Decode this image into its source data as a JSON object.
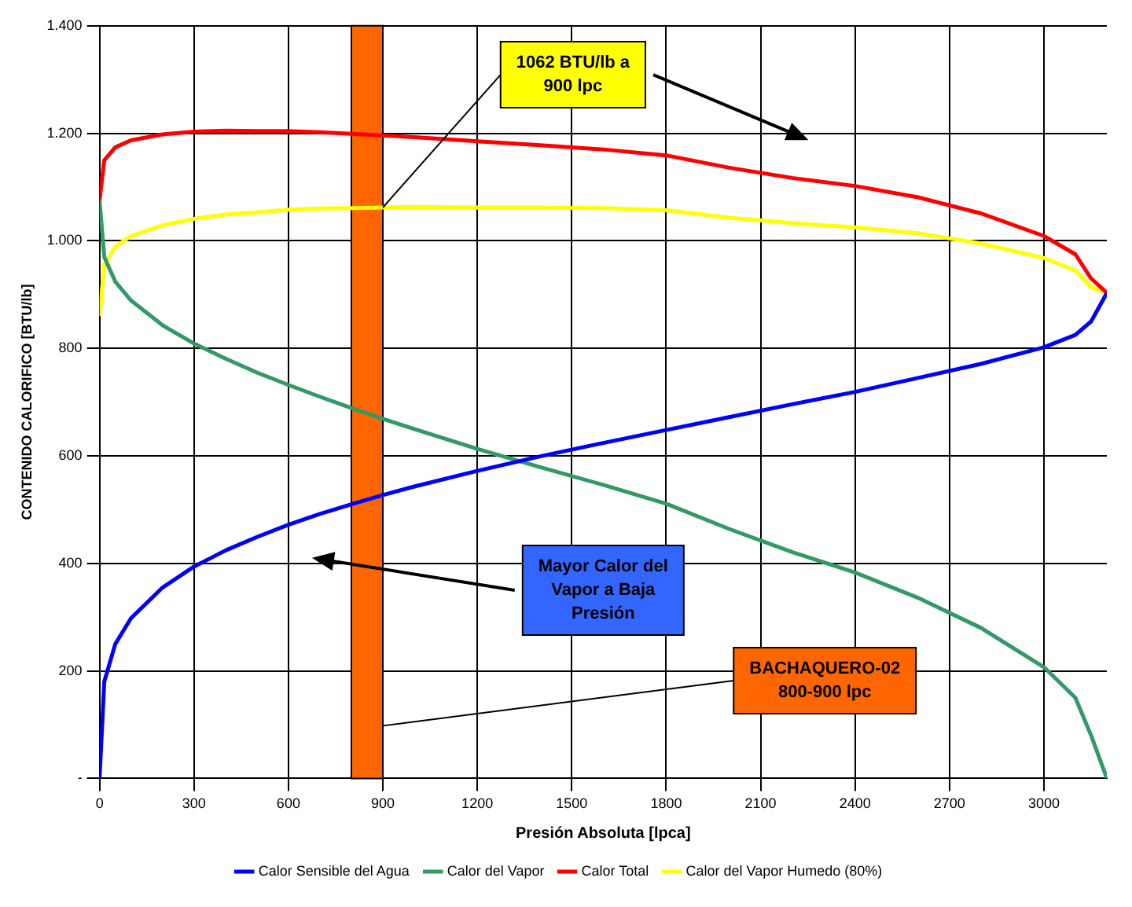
{
  "chart_data": {
    "type": "line",
    "xlabel": "Presión Absoluta [lpca]",
    "ylabel": "CONTENIDO CALORIFICO [BTU/lb]",
    "x": [
      0,
      15,
      50,
      100,
      200,
      300,
      400,
      500,
      600,
      700,
      800,
      900,
      1000,
      1200,
      1400,
      1600,
      1800,
      2000,
      2200,
      2400,
      2600,
      2800,
      3000,
      3100,
      3150,
      3200
    ],
    "series": [
      {
        "name": "Calor Sensible del Agua",
        "color": "#0000ff",
        "values": [
          0,
          180,
          250,
          298,
          355,
          394,
          424,
          449,
          472,
          492,
          510,
          527,
          543,
          572,
          599,
          624,
          648,
          672,
          696,
          719,
          745,
          771,
          802,
          825,
          850,
          903
        ]
      },
      {
        "name": "Calor del Vapor",
        "color": "#339966",
        "values": [
          1075,
          970,
          924,
          889,
          843,
          809,
          781,
          755,
          732,
          710,
          689,
          669,
          650,
          613,
          579,
          546,
          511,
          464,
          421,
          383,
          336,
          280,
          207,
          150,
          80,
          0
        ]
      },
      {
        "name": "Calor Total",
        "color": "#ff0000",
        "values": [
          1075,
          1150,
          1174,
          1187,
          1198,
          1203,
          1205,
          1204,
          1204,
          1202,
          1199,
          1196,
          1193,
          1185,
          1178,
          1170,
          1159,
          1136,
          1117,
          1102,
          1081,
          1051,
          1009,
          975,
          930,
          903
        ]
      },
      {
        "name": "Calor del Vapor Humedo (80%)",
        "color": "#ffff00",
        "values": [
          860,
          956,
          989,
          1009,
          1029,
          1041,
          1049,
          1053,
          1058,
          1060,
          1061,
          1062,
          1063,
          1062,
          1062,
          1061,
          1057,
          1043,
          1033,
          1025,
          1014,
          995,
          968,
          945,
          914,
          903
        ]
      }
    ],
    "xlim": [
      0,
      3200
    ],
    "xticks": [
      0,
      300,
      600,
      900,
      1200,
      1500,
      1800,
      2100,
      2400,
      2700,
      3000
    ],
    "ylim": [
      0,
      1400
    ],
    "yticks": [
      {
        "value": 0,
        "label": "-"
      },
      200,
      400,
      600,
      800,
      {
        "value": 1000,
        "label": "1.000"
      },
      {
        "value": 1200,
        "label": "1.200"
      },
      {
        "value": 1400,
        "label": "1.400"
      }
    ],
    "grid": true,
    "legend": "bottom",
    "marker": "none",
    "line_style": "solid",
    "bands": [
      {
        "axis": "x",
        "from": 800,
        "to": 900,
        "label": "BACHAQUERO-02 800-900 lpc",
        "color": "#ff6600"
      }
    ],
    "annotations": [
      {
        "text": "1062 BTU/lb a 900 lpc",
        "x": 900,
        "y": 1062
      },
      "Mayor Calor del Vapor a Baja Presión"
    ]
  }
}
